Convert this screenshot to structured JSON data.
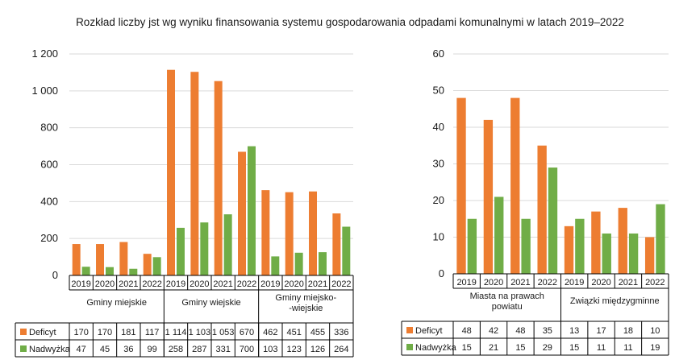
{
  "title": "Rozkład liczby jst wg wyniku finansowania systemu gospodarowania odpadami komunalnymi w latach 2019–2022",
  "colors": {
    "deficyt": "#ED7D31",
    "nadwyzka": "#70AD47",
    "grid": "#d9d9d9"
  },
  "chart_data": [
    {
      "type": "bar",
      "ylim": [
        0,
        1200
      ],
      "yticks": [
        "0",
        "200",
        "400",
        "600",
        "800",
        "1 000",
        "1 200"
      ],
      "grid": true,
      "legend": "table-bottom",
      "years": [
        "2019",
        "2020",
        "2021",
        "2022"
      ],
      "groups": [
        {
          "name": "Gminy miejskie",
          "lines": [
            "Gminy miejskie"
          ]
        },
        {
          "name": "Gminy wiejskie",
          "lines": [
            "Gminy wiejskie"
          ]
        },
        {
          "name": "Gminy miejsko-wiejskie",
          "lines": [
            "Gminy miejsko-",
            "-wiejskie"
          ]
        }
      ],
      "series": [
        {
          "name": "Deficyt",
          "values": [
            170,
            170,
            181,
            117,
            1114,
            1103,
            1053,
            670,
            462,
            451,
            455,
            336
          ],
          "labels": [
            "170",
            "170",
            "181",
            "117",
            "1 114",
            "1 103",
            "1 053",
            "670",
            "462",
            "451",
            "455",
            "336"
          ]
        },
        {
          "name": "Nadwyżka",
          "values": [
            47,
            45,
            36,
            99,
            258,
            287,
            331,
            700,
            103,
            123,
            126,
            264
          ],
          "labels": [
            "47",
            "45",
            "36",
            "99",
            "258",
            "287",
            "331",
            "700",
            "103",
            "123",
            "126",
            "264"
          ]
        }
      ]
    },
    {
      "type": "bar",
      "ylim": [
        0,
        60
      ],
      "yticks": [
        "0",
        "10",
        "20",
        "30",
        "40",
        "50",
        "60"
      ],
      "grid": true,
      "legend": "table-bottom",
      "years": [
        "2019",
        "2020",
        "2021",
        "2022"
      ],
      "groups": [
        {
          "name": "Miasta na prawach powiatu",
          "lines": [
            "Miasta na prawach",
            "powiatu"
          ]
        },
        {
          "name": "Związki międzygminne",
          "lines": [
            "Związki międzygminne"
          ]
        }
      ],
      "series": [
        {
          "name": "Deficyt",
          "values": [
            48,
            42,
            48,
            35,
            13,
            17,
            18,
            10
          ],
          "labels": [
            "48",
            "42",
            "48",
            "35",
            "13",
            "17",
            "18",
            "10"
          ]
        },
        {
          "name": "Nadwyżka",
          "values": [
            15,
            21,
            15,
            29,
            15,
            11,
            11,
            19
          ],
          "labels": [
            "15",
            "21",
            "15",
            "29",
            "15",
            "11",
            "11",
            "19"
          ]
        }
      ]
    }
  ]
}
